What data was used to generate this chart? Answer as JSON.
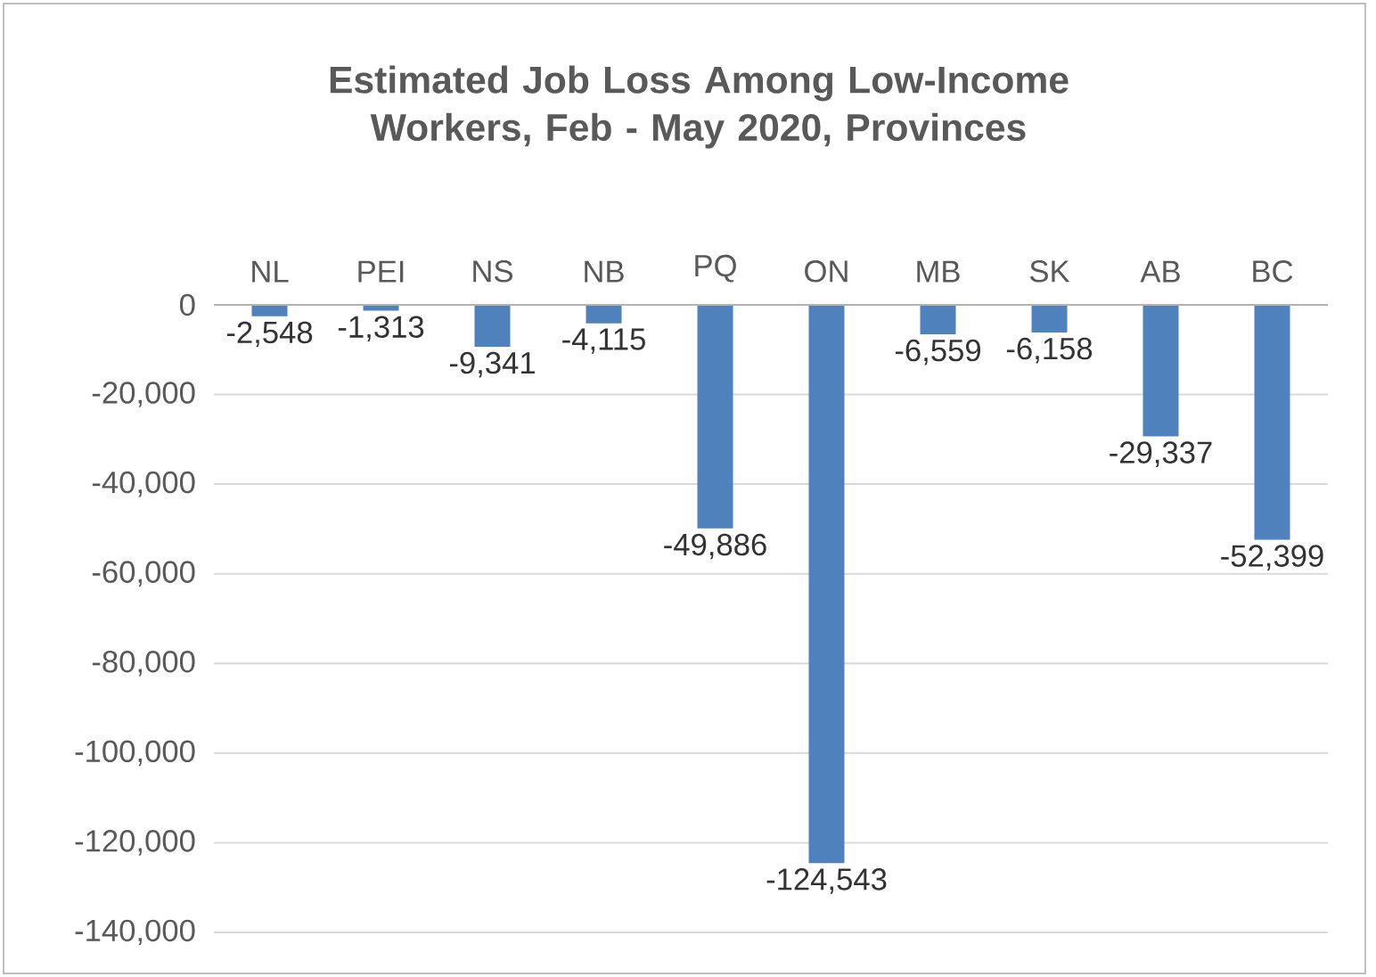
{
  "chart_data": {
    "type": "bar",
    "title": "Estimated Job Loss Among Low-Income Workers, Feb - May 2020, Provinces",
    "categories": [
      "NL",
      "PEI",
      "NS",
      "NB",
      "PQ",
      "ON",
      "MB",
      "SK",
      "AB",
      "BC"
    ],
    "values": [
      -2548,
      -1313,
      -9341,
      -4115,
      -49886,
      -124543,
      -6559,
      -6158,
      -29337,
      -52399
    ],
    "value_labels": [
      "-2,548",
      "-1,313",
      "-9,341",
      "-4,115",
      "-49,886",
      "-124,543",
      "-6,559",
      "-6,158",
      "-29,337",
      "-52,399"
    ],
    "color": "#4f81bd",
    "ylim": [
      -140000,
      0
    ],
    "yticks": [
      {
        "value": -140000,
        "label": "-140,000"
      },
      {
        "value": -120000,
        "label": "-120,000"
      },
      {
        "value": -100000,
        "label": "-100,000"
      },
      {
        "value": -80000,
        "label": "-80,000"
      },
      {
        "value": -60000,
        "label": "-60,000"
      },
      {
        "value": -40000,
        "label": "-40,000"
      },
      {
        "value": -20000,
        "label": "-20,000"
      },
      0
    ],
    "grid": "y"
  }
}
